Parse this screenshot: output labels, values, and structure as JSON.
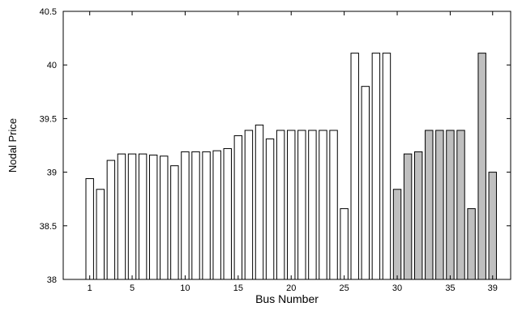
{
  "chart_data": {
    "type": "bar",
    "xlabel": "Bus Number",
    "ylabel": "Nodal Price",
    "ylim": [
      38,
      40.5
    ],
    "yticks": [
      "38",
      "38.5",
      "39",
      "39.5",
      "40",
      "40.5"
    ],
    "xticks": [
      {
        "value": 1,
        "label": "1"
      },
      {
        "value": 5,
        "label": "5"
      },
      {
        "value": 10,
        "label": "10"
      },
      {
        "value": 15,
        "label": "15"
      },
      {
        "value": 20,
        "label": "20"
      },
      {
        "value": 25,
        "label": "25"
      },
      {
        "value": 30,
        "label": "30"
      },
      {
        "value": 35,
        "label": "35"
      },
      {
        "value": 39,
        "label": "39"
      }
    ],
    "xlim": [
      -1.5,
      40.7
    ],
    "grid": false,
    "colors": {
      "white_fill": "#ffffff",
      "gray_fill": "#bfbfbf",
      "stroke": "#000000"
    },
    "buses": [
      1,
      2,
      3,
      4,
      5,
      6,
      7,
      8,
      9,
      10,
      11,
      12,
      13,
      14,
      15,
      16,
      17,
      18,
      19,
      20,
      21,
      22,
      23,
      24,
      25,
      26,
      27,
      28,
      29,
      30,
      31,
      32,
      33,
      34,
      35,
      36,
      37,
      38,
      39
    ],
    "values": [
      38.94,
      38.84,
      39.11,
      39.17,
      39.17,
      39.17,
      39.16,
      39.15,
      39.06,
      39.19,
      39.19,
      39.19,
      39.2,
      39.22,
      39.34,
      39.39,
      39.44,
      39.31,
      39.39,
      39.39,
      39.39,
      39.39,
      39.39,
      39.39,
      38.66,
      40.11,
      39.8,
      40.11,
      40.11,
      38.84,
      39.17,
      39.19,
      39.39,
      39.39,
      39.39,
      39.39,
      38.66,
      40.11,
      39.0
    ],
    "shaded_from_bus": 30
  }
}
